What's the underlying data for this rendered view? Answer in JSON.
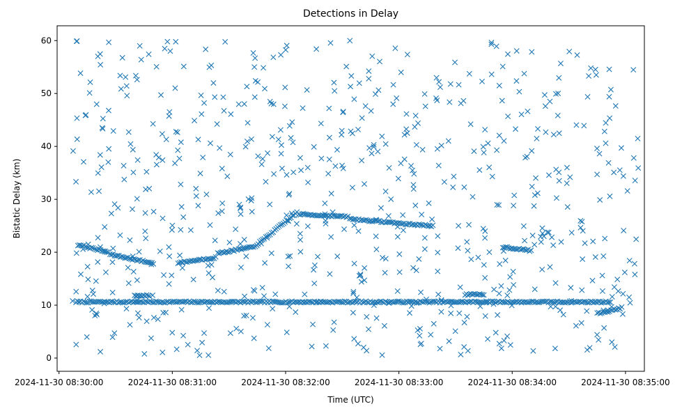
{
  "chart_data": {
    "type": "scatter",
    "title": "Detections in Delay",
    "xlabel": "Time (UTC)",
    "ylabel": "Bistatic Delay (km)",
    "xlim": [
      "2024-11-30 08:29:59",
      "2024-11-30 08:35:10"
    ],
    "ylim": [
      -2.5,
      62.8
    ],
    "xticks": [
      "2024-11-30 08:30:00",
      "2024-11-30 08:31:00",
      "2024-11-30 08:32:00",
      "2024-11-30 08:33:00",
      "2024-11-30 08:34:00",
      "2024-11-30 08:35:00"
    ],
    "yticks": [
      0,
      10,
      20,
      30,
      40,
      50,
      60
    ],
    "marker": "x",
    "color": "#1f77b4",
    "grid": false,
    "legend": "none",
    "series": [
      {
        "tracks": [
          {
            "start": "2024-11-30 08:30:09",
            "end": "2024-11-30 08:34:52",
            "y_start": 10.6,
            "y_end": 10.6
          },
          {
            "start": "2024-11-30 08:30:10",
            "end": "2024-11-30 08:30:26",
            "y_start": 21.4,
            "y_end": 20.0
          },
          {
            "start": "2024-11-30 08:30:27",
            "end": "2024-11-30 08:30:50",
            "y_start": 19.6,
            "y_end": 17.9
          },
          {
            "start": "2024-11-30 08:31:03",
            "end": "2024-11-30 08:31:23",
            "y_start": 18.0,
            "y_end": 19.0
          },
          {
            "start": "2024-11-30 08:31:24",
            "end": "2024-11-30 08:31:43",
            "y_start": 19.8,
            "y_end": 21.0
          },
          {
            "start": "2024-11-30 08:31:44",
            "end": "2024-11-30 08:32:06",
            "y_start": 21.2,
            "y_end": 27.5
          },
          {
            "start": "2024-11-30 08:32:07",
            "end": "2024-11-30 08:32:33",
            "y_start": 27.2,
            "y_end": 26.7
          },
          {
            "start": "2024-11-30 08:32:34",
            "end": "2024-11-30 08:33:00",
            "y_start": 26.3,
            "y_end": 25.5
          },
          {
            "start": "2024-11-30 08:33:01",
            "end": "2024-11-30 08:33:18",
            "y_start": 25.4,
            "y_end": 25.0
          },
          {
            "start": "2024-11-30 08:33:35",
            "end": "2024-11-30 08:33:45",
            "y_start": 12.0,
            "y_end": 12.0
          },
          {
            "start": "2024-11-30 08:33:55",
            "end": "2024-11-30 08:34:10",
            "y_start": 21.0,
            "y_end": 20.3
          },
          {
            "start": "2024-11-30 08:30:40",
            "end": "2024-11-30 08:30:48",
            "y_start": 11.8,
            "y_end": 11.8
          },
          {
            "start": "2024-11-30 08:34:45",
            "end": "2024-11-30 08:34:58",
            "y_start": 8.4,
            "y_end": 9.5
          }
        ],
        "clutter": {
          "count": 700,
          "seed": 7,
          "y_range": [
            0.5,
            60
          ]
        }
      }
    ]
  }
}
